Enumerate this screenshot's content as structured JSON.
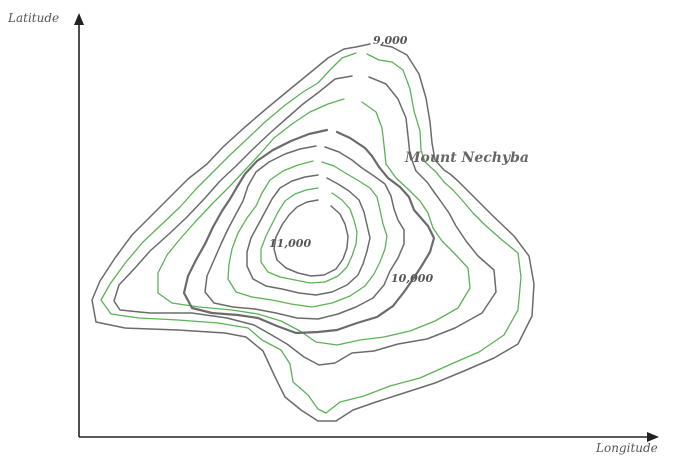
{
  "axes": {
    "y_label": "Latitude",
    "x_label": "Longitude"
  },
  "feature": {
    "name": "Mount Nechyba"
  },
  "contour_labels": {
    "c9000": "9,000",
    "c10000": "10,000",
    "c11000": "11,000"
  },
  "colors": {
    "axis": "#222222",
    "contour_gray": "#6b6b6b",
    "contour_green": "#5bb356",
    "label_text": "#555555"
  }
}
